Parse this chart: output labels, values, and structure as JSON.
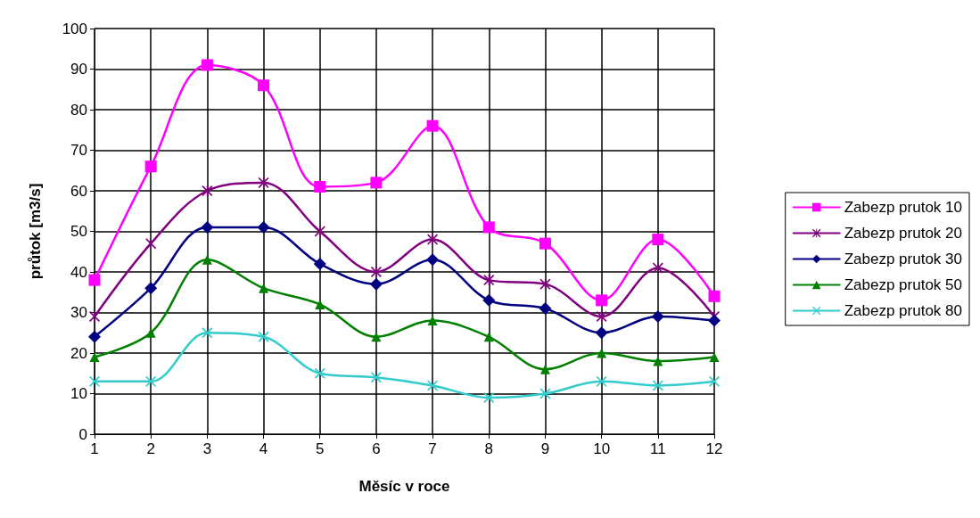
{
  "chart_data": {
    "type": "line",
    "xlabel": "Měsíc v roce",
    "ylabel": "průtok [m3/s]",
    "x": [
      1,
      2,
      3,
      4,
      5,
      6,
      7,
      8,
      9,
      10,
      11,
      12
    ],
    "xlim": [
      1,
      12
    ],
    "xticks": [
      1,
      2,
      3,
      4,
      5,
      6,
      7,
      8,
      9,
      10,
      11,
      12
    ],
    "ylim": [
      0,
      100
    ],
    "yticks": [
      0,
      10,
      20,
      30,
      40,
      50,
      60,
      70,
      80,
      90,
      100
    ],
    "grid": true,
    "legend": "right",
    "series": [
      {
        "name": "Zabezp prutok 10",
        "color": "#ff00ff",
        "marker": "square",
        "values": [
          38,
          66,
          91,
          86,
          61,
          62,
          76,
          51,
          47,
          33,
          48,
          34
        ]
      },
      {
        "name": "Zabezp prutok 20",
        "color": "#800080",
        "marker": "star",
        "values": [
          29,
          47,
          60,
          62,
          50,
          40,
          48,
          38,
          37,
          29,
          41,
          29
        ]
      },
      {
        "name": "Zabezp prutok 30",
        "color": "#000080",
        "marker": "diamond",
        "values": [
          24,
          36,
          51,
          51,
          42,
          37,
          43,
          33,
          31,
          25,
          29,
          28
        ]
      },
      {
        "name": "Zabezp prutok 50",
        "color": "#008000",
        "marker": "triangle",
        "values": [
          19,
          25,
          43,
          36,
          32,
          24,
          28,
          24,
          16,
          20,
          18,
          19
        ]
      },
      {
        "name": "Zabezp prutok 80",
        "color": "#33cccc",
        "marker": "cross",
        "values": [
          13,
          13,
          25,
          24,
          15,
          14,
          12,
          9,
          10,
          13,
          12,
          13
        ]
      }
    ]
  }
}
